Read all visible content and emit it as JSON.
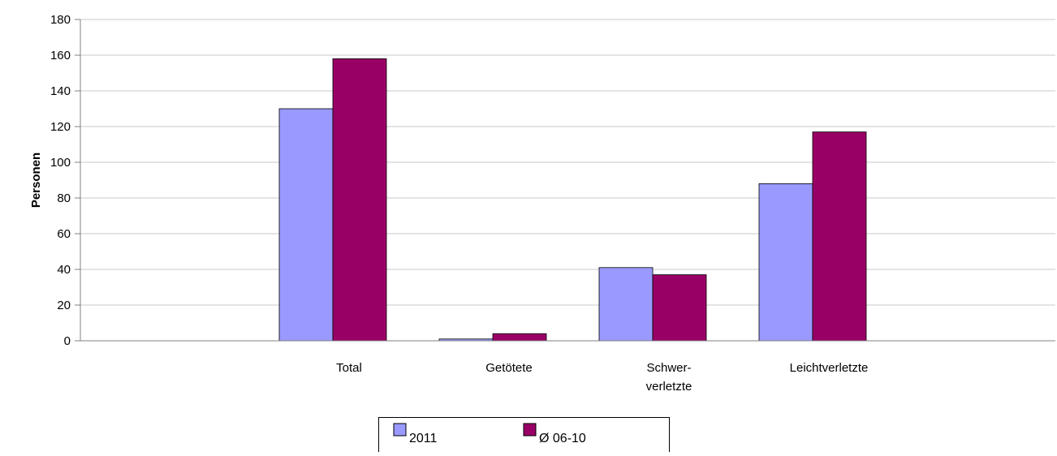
{
  "chart_data": {
    "type": "bar",
    "ylabel": "Personen",
    "ylim": [
      0,
      180
    ],
    "y_ticks": [
      0,
      20,
      40,
      60,
      80,
      100,
      120,
      140,
      160,
      180
    ],
    "grid": true,
    "legend_position": "bottom-center",
    "categories": [
      {
        "lines": [
          "Total"
        ]
      },
      {
        "lines": [
          "Getötete"
        ]
      },
      {
        "lines": [
          "Schwer-",
          "verletzte"
        ]
      },
      {
        "lines": [
          "Leichtverletzte"
        ]
      }
    ],
    "series": [
      {
        "name": "2011",
        "color": "#9999ff",
        "values": [
          130,
          1,
          41,
          88
        ]
      },
      {
        "name": "Ø 06-10",
        "color": "#990066",
        "values": [
          158,
          4,
          37,
          117
        ]
      }
    ]
  }
}
